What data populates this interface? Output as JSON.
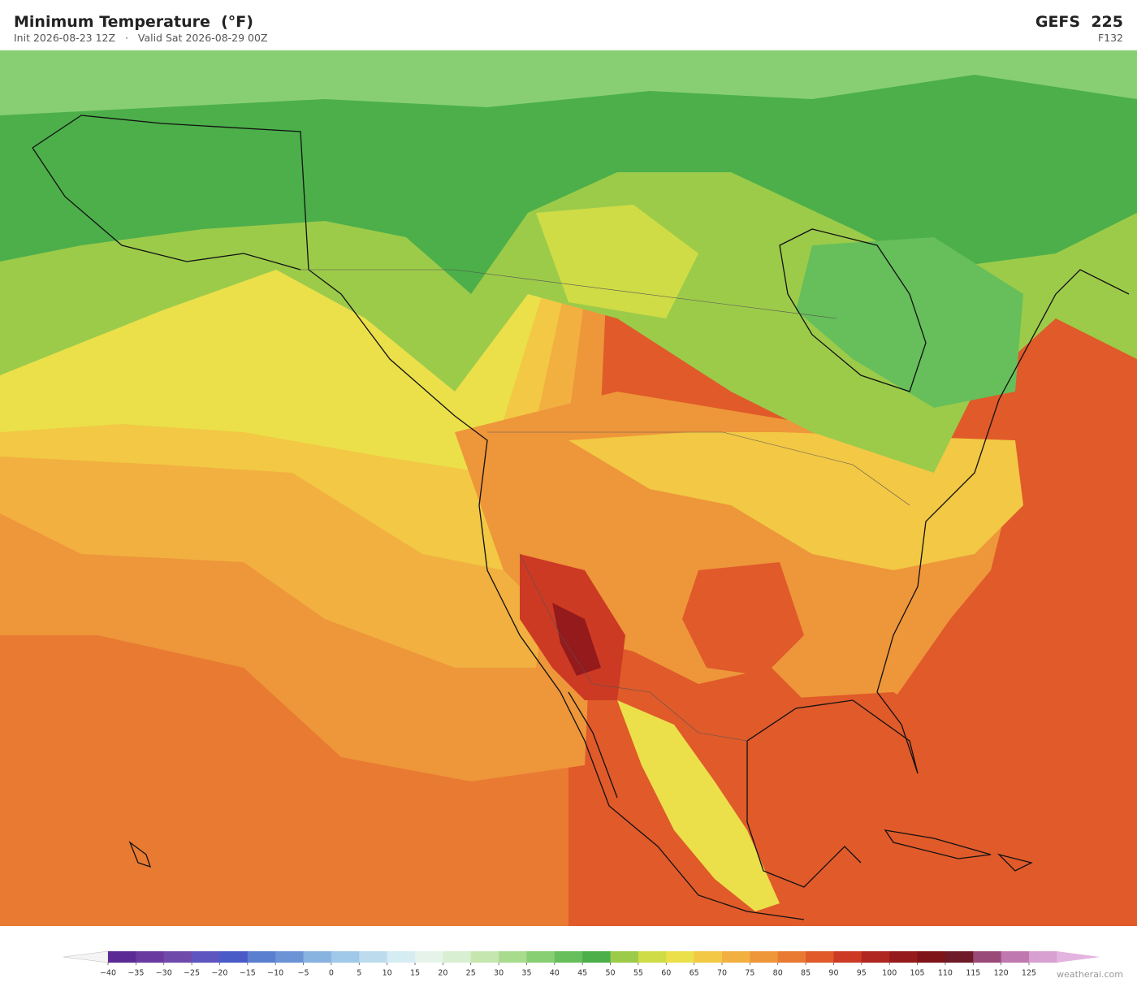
{
  "header": {
    "title": "Minimum Temperature  (°F)",
    "init": "Init 2026-08-23 12Z",
    "separator": "·",
    "valid": "Valid Sat 2026-08-29 00Z",
    "model": "GEFS  225",
    "forecast_hour": "F132"
  },
  "colorbar": {
    "ticks": [
      {
        "value": -40,
        "label": "−40"
      },
      {
        "value": -35,
        "label": "−35"
      },
      {
        "value": -30,
        "label": "−30"
      },
      {
        "value": -25,
        "label": "−25"
      },
      {
        "value": -20,
        "label": "−20"
      },
      {
        "value": -15,
        "label": "−15"
      },
      {
        "value": -10,
        "label": "−10"
      },
      {
        "value": -5,
        "label": "−5"
      },
      0,
      5,
      10,
      15,
      20,
      25,
      30,
      35,
      40,
      45,
      50,
      55,
      60,
      65,
      70,
      75,
      80,
      85,
      90,
      95,
      100,
      105,
      110,
      115,
      120,
      125
    ],
    "colors": [
      "#5b2a94",
      "#6a3aa0",
      "#6f4aab",
      "#5e55c0",
      "#4a5bc8",
      "#5a7fd0",
      "#6b93d6",
      "#88b2e0",
      "#a0c8e8",
      "#bcdcee",
      "#d6ecf3",
      "#e6f3ea",
      "#d9efd2",
      "#c6e6b0",
      "#a9db8e",
      "#88cf74",
      "#66bf5a",
      "#4caf4a",
      "#9ccb4a",
      "#cfdc46",
      "#ebe04a",
      "#f2c844",
      "#f2b040",
      "#ee963a",
      "#e97a32",
      "#e05a2a",
      "#cc3a24",
      "#b02620",
      "#941a1c",
      "#7e1418",
      "#6e1a28",
      "#9a4a78",
      "#c078b0",
      "#d8a0d0"
    ],
    "under_color": "#f4f4f4",
    "over_color": "#e4b4e0"
  },
  "footer": {
    "credit": "weatherai.com"
  }
}
